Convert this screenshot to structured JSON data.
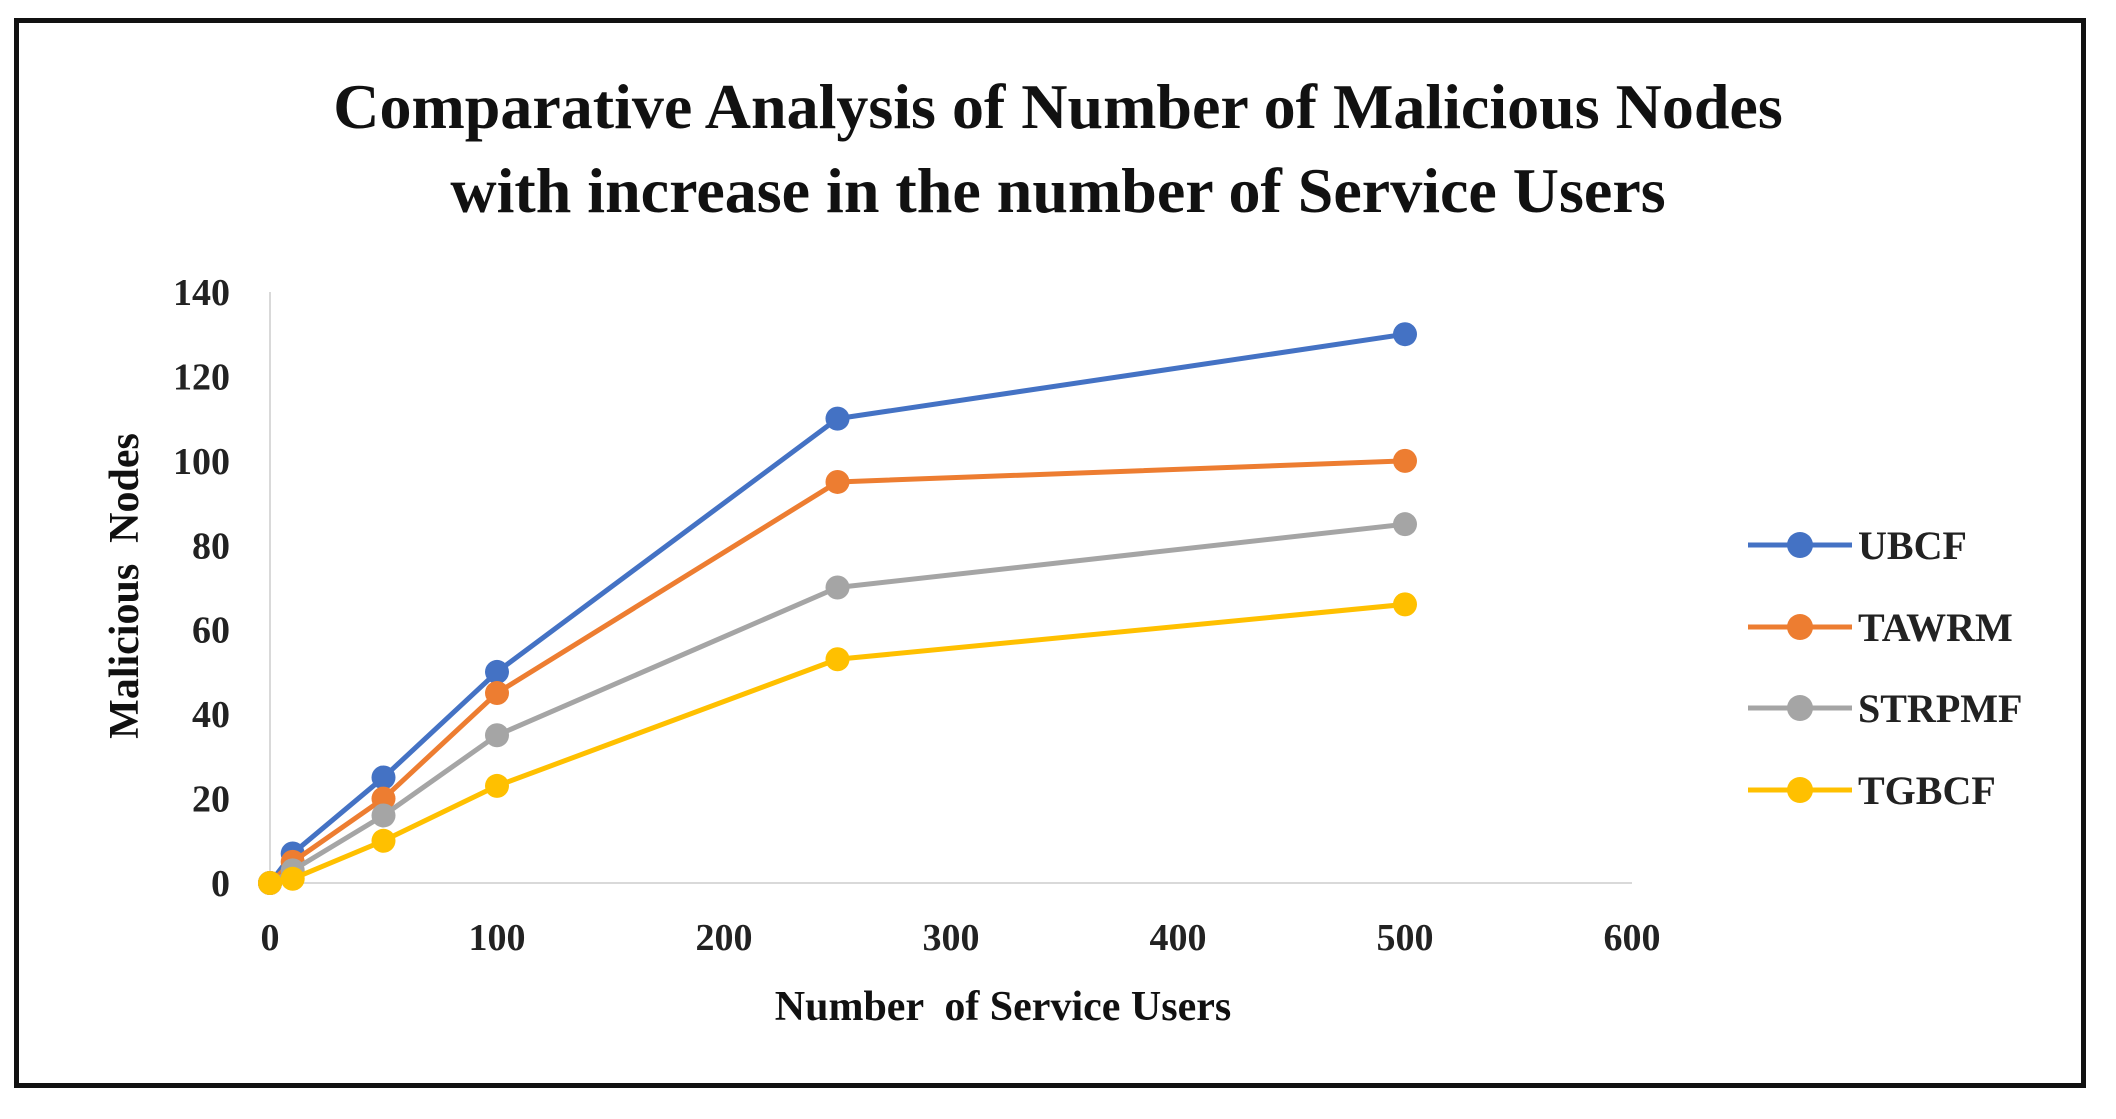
{
  "chart_data": {
    "type": "line",
    "title_lines": [
      "Comparative Analysis of Number of Malicious Nodes",
      "with increase in the number of Service Users"
    ],
    "xlabel": "Number  of Service Users",
    "ylabel": "Malicious  Nodes",
    "xlim": [
      0,
      600
    ],
    "ylim": [
      0,
      140
    ],
    "x_ticks": [
      "0",
      "100",
      "200",
      "300",
      "400",
      "500",
      "600"
    ],
    "y_ticks": [
      "0",
      "20",
      "40",
      "60",
      "80",
      "100",
      "120",
      "140"
    ],
    "x": [
      0,
      10,
      50,
      100,
      250,
      500
    ],
    "series": [
      {
        "name": "UBCF",
        "color": "#4472C4",
        "values": [
          0,
          7,
          25,
          50,
          110,
          130
        ]
      },
      {
        "name": "TAWRM",
        "color": "#ED7D31",
        "values": [
          0,
          5,
          20,
          45,
          95,
          100
        ]
      },
      {
        "name": "STRPMF",
        "color": "#A5A5A5",
        "values": [
          0,
          3,
          16,
          35,
          70,
          85
        ]
      },
      {
        "name": "TGBCF",
        "color": "#FFC000",
        "values": [
          0,
          1,
          10,
          23,
          53,
          66
        ]
      }
    ],
    "grid": false,
    "legend_position": "right"
  }
}
